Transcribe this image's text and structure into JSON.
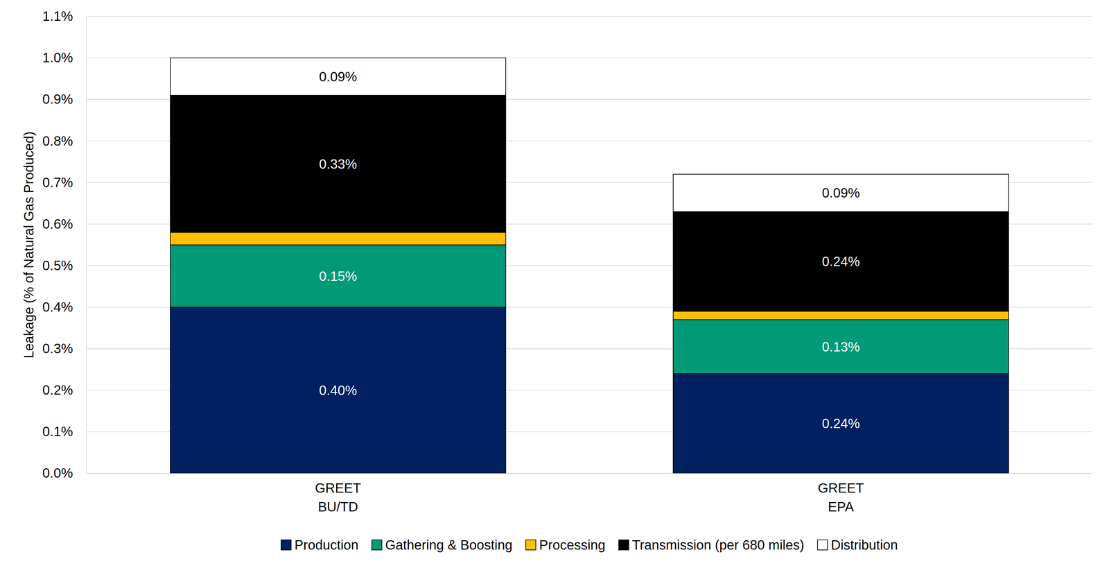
{
  "chart_data": {
    "type": "bar",
    "stacked": true,
    "data_labels": true,
    "grid": true,
    "legend": "bottom",
    "y_label": "Leakage (% of Natural Gas Produced)",
    "categories": [
      "GREET\nBU/TD",
      "GREET\nEPA"
    ],
    "ylim": [
      0,
      1.1
    ],
    "yticks": [
      {
        "value": 0,
        "label": "0.0%"
      },
      {
        "value": 0.1,
        "label": "0.1%"
      },
      {
        "value": 0.2,
        "label": "0.2%"
      },
      {
        "value": 0.3,
        "label": "0.3%"
      },
      {
        "value": 0.4,
        "label": "0.4%"
      },
      {
        "value": 0.5,
        "label": "0.5%"
      },
      {
        "value": 0.6,
        "label": "0.6%"
      },
      {
        "value": 0.7,
        "label": "0.7%"
      },
      {
        "value": 0.8,
        "label": "0.8%"
      },
      {
        "value": 0.9,
        "label": "0.9%"
      },
      {
        "value": 1.0,
        "label": "1.0%"
      },
      {
        "value": 1.1,
        "label": "1.1%"
      }
    ],
    "series": [
      {
        "name": "Production",
        "color": "#002060",
        "values": [
          0.4,
          0.24
        ],
        "value_labels": [
          "0.40%",
          "0.24%"
        ]
      },
      {
        "name": "Gathering & Boosting",
        "color": "#009a77",
        "values": [
          0.15,
          0.13
        ],
        "value_labels": [
          "0.15%",
          "0.13%"
        ]
      },
      {
        "name": "Processing",
        "color": "#ffc000",
        "values": [
          0.03,
          0.02
        ]
      },
      {
        "name": "Transmission (per 680 miles)",
        "color": "#000000",
        "values": [
          0.33,
          0.24
        ],
        "value_labels": [
          "0.33%",
          "0.24%"
        ]
      },
      {
        "name": "Distribution",
        "color": "#ffffff",
        "values": [
          0.09,
          0.09
        ],
        "value_labels": [
          "0.09%",
          "0.09%"
        ]
      }
    ]
  }
}
